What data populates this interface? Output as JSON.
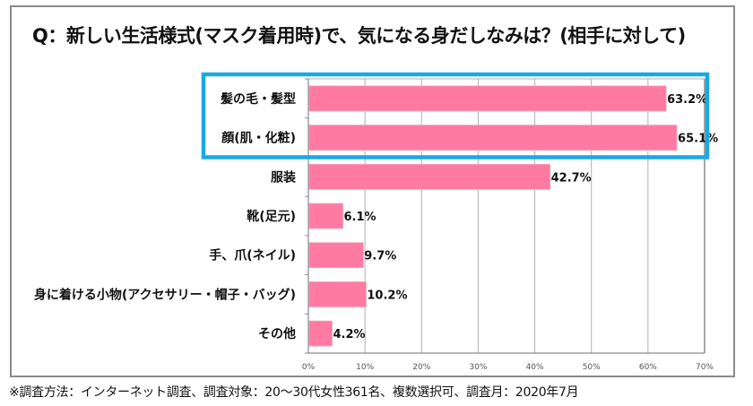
{
  "chart_data": {
    "type": "bar",
    "orientation": "horizontal",
    "title": "Q：新しい生活様式(マスク着用時)で、気になる身だしなみは？(相手に対して)",
    "categories": [
      "髪の毛・髪型",
      "顔(肌・化粧)",
      "服装",
      "靴(足元)",
      "手、爪(ネイル)",
      "身に着ける小物(アクセサリー・帽子・バッグ)",
      "その他"
    ],
    "values": [
      63.2,
      65.1,
      42.7,
      6.1,
      9.7,
      10.2,
      4.2
    ],
    "value_labels": [
      "63.2%",
      "65.1%",
      "42.7%",
      "6.1%",
      "9.7%",
      "10.2%",
      "4.2%"
    ],
    "xlabel": "",
    "ylabel": "",
    "xlim": [
      0,
      70
    ],
    "x_ticks": [
      0,
      10,
      20,
      30,
      40,
      50,
      60,
      70
    ],
    "x_tick_labels": [
      "0%",
      "10%",
      "20%",
      "30%",
      "40%",
      "50%",
      "60%",
      "70%"
    ],
    "grid": true,
    "highlighted_categories": [
      "髪の毛・髪型",
      "顔(肌・化粧)"
    ],
    "colors": {
      "bar": "#ff7aa2",
      "highlight_box": "#19a9e5",
      "grid": "#b0b0b0",
      "frame": "#8a8a8a"
    }
  },
  "footnote": "※調査方法：インターネット調査、調査対象：20〜30代女性361名、複数選択可、調査月：2020年7月"
}
